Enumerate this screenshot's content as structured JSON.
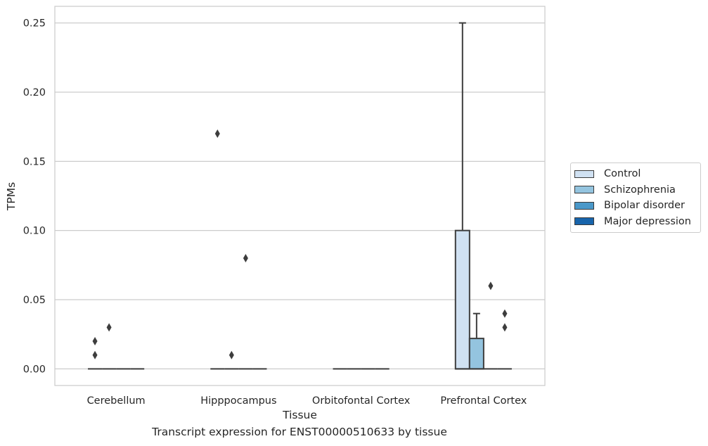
{
  "chart_data": {
    "type": "box",
    "xlabel": "Tissue",
    "ylabel": "TPMs",
    "caption": "Transcript expression for ENST00000510633 by tissue",
    "ylim": [
      -0.012,
      0.262
    ],
    "yticks": [
      0.0,
      0.05,
      0.1,
      0.15,
      0.2,
      0.25
    ],
    "ytick_labels": [
      "0.00",
      "0.05",
      "0.10",
      "0.15",
      "0.20",
      "0.25"
    ],
    "grid": true,
    "legend_position": "right",
    "categories": [
      "Cerebellum",
      "Hipppocampus",
      "Orbitofontal Cortex",
      "Prefrontal Cortex"
    ],
    "series": [
      {
        "name": "Control",
        "color": "#d0e1f2",
        "boxes": [
          {
            "q1": 0,
            "median": 0,
            "q3": 0,
            "whislo": 0,
            "whishi": 0,
            "fliers": [
              0.02,
              0.01
            ]
          },
          {
            "q1": 0,
            "median": 0,
            "q3": 0,
            "whislo": 0,
            "whishi": 0,
            "fliers": [
              0.17
            ]
          },
          {
            "q1": 0,
            "median": 0,
            "q3": 0,
            "whislo": 0,
            "whishi": 0,
            "fliers": []
          },
          {
            "q1": 0,
            "median": 0,
            "q3": 0.1,
            "whislo": 0,
            "whishi": 0.25,
            "fliers": []
          }
        ]
      },
      {
        "name": "Schizophrenia",
        "color": "#94c4df",
        "boxes": [
          {
            "q1": 0,
            "median": 0,
            "q3": 0,
            "whislo": 0,
            "whishi": 0,
            "fliers": [
              0.03
            ]
          },
          {
            "q1": 0,
            "median": 0,
            "q3": 0,
            "whislo": 0,
            "whishi": 0,
            "fliers": [
              0.01
            ]
          },
          {
            "q1": 0,
            "median": 0,
            "q3": 0,
            "whislo": 0,
            "whishi": 0,
            "fliers": []
          },
          {
            "q1": 0,
            "median": 0,
            "q3": 0.022,
            "whislo": 0,
            "whishi": 0.04,
            "fliers": []
          }
        ]
      },
      {
        "name": "Bipolar disorder",
        "color": "#4a98c9",
        "boxes": [
          {
            "q1": 0,
            "median": 0,
            "q3": 0,
            "whislo": 0,
            "whishi": 0,
            "fliers": []
          },
          {
            "q1": 0,
            "median": 0,
            "q3": 0,
            "whislo": 0,
            "whishi": 0,
            "fliers": [
              0.08
            ]
          },
          {
            "q1": 0,
            "median": 0,
            "q3": 0,
            "whislo": 0,
            "whishi": 0,
            "fliers": []
          },
          {
            "q1": 0,
            "median": 0,
            "q3": 0,
            "whislo": 0,
            "whishi": 0,
            "fliers": [
              0.06
            ]
          }
        ]
      },
      {
        "name": "Major depression",
        "color": "#1764ab",
        "boxes": [
          {
            "q1": 0,
            "median": 0,
            "q3": 0,
            "whislo": 0,
            "whishi": 0,
            "fliers": []
          },
          {
            "q1": 0,
            "median": 0,
            "q3": 0,
            "whislo": 0,
            "whishi": 0,
            "fliers": []
          },
          {
            "q1": 0,
            "median": 0,
            "q3": 0,
            "whislo": 0,
            "whishi": 0,
            "fliers": []
          },
          {
            "q1": 0,
            "median": 0,
            "q3": 0,
            "whislo": 0,
            "whishi": 0,
            "fliers": [
              0.04,
              0.03
            ]
          }
        ]
      }
    ]
  }
}
